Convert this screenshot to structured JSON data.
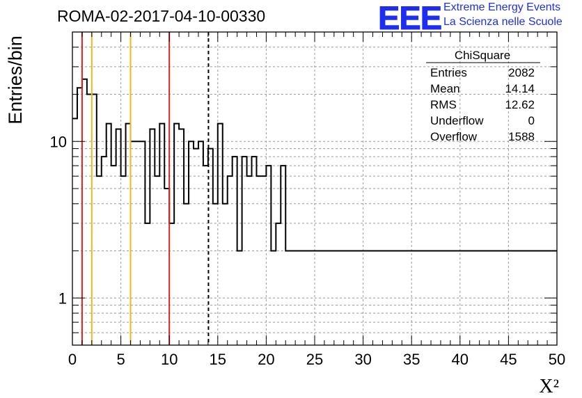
{
  "header": {
    "title": "ROMA-02-2017-04-10-00330",
    "logo_text": "EEE",
    "logo_line1": "Extreme Energy Events",
    "logo_line2": "La Scienza nelle Scuole",
    "logo_color": "#1d2ef2"
  },
  "stats_box": {
    "title": "ChiSquare",
    "rows": [
      {
        "label": "Entries",
        "value": "2082"
      },
      {
        "label": "Mean",
        "value": "14.14"
      },
      {
        "label": "RMS",
        "value": "12.62"
      },
      {
        "label": "Underflow",
        "value": "0"
      },
      {
        "label": "Overflow",
        "value": "1588"
      }
    ]
  },
  "chart_data": {
    "type": "histogram",
    "title": "ROMA-02-2017-04-10-00330",
    "xlabel": "X²",
    "ylabel": "Entries/bin",
    "xlim": [
      0,
      50
    ],
    "ylim": [
      0.5,
      50
    ],
    "yscale": "log",
    "grid": true,
    "bin_width": 0.5,
    "x_ticks": [
      "0",
      "5",
      "10",
      "15",
      "20",
      "25",
      "30",
      "35",
      "40",
      "45",
      "50"
    ],
    "y_ticks": [
      "1",
      "10"
    ],
    "values": [
      14,
      22,
      25,
      20,
      20,
      6,
      8,
      13,
      7,
      12,
      6,
      13,
      10,
      10,
      10,
      3,
      12,
      6,
      13,
      5,
      3,
      13,
      12,
      4,
      10,
      9,
      10,
      7,
      9,
      4,
      13,
      4,
      6,
      8,
      2,
      8,
      6,
      8,
      6,
      6,
      7,
      2,
      3,
      7,
      2,
      2,
      2,
      2,
      2,
      2,
      2,
      2,
      2,
      2,
      2,
      2,
      2,
      2,
      2,
      2,
      2,
      2,
      2,
      2,
      2,
      2,
      2,
      2,
      2,
      2,
      2,
      2,
      2,
      2,
      2,
      2,
      2,
      2,
      2,
      2,
      2,
      2,
      2,
      2,
      2,
      2,
      2,
      2,
      2,
      2,
      2,
      2,
      2,
      2,
      2,
      2,
      2,
      2,
      2,
      2
    ],
    "vlines": [
      {
        "x": 1,
        "color": "#e02020",
        "style": "solid"
      },
      {
        "x": 2,
        "color": "#f0b820",
        "style": "solid"
      },
      {
        "x": 6,
        "color": "#f0b820",
        "style": "solid"
      },
      {
        "x": 10,
        "color": "#e02020",
        "style": "solid"
      },
      {
        "x": 14.04,
        "color": "#000000",
        "style": "dashed"
      }
    ]
  }
}
